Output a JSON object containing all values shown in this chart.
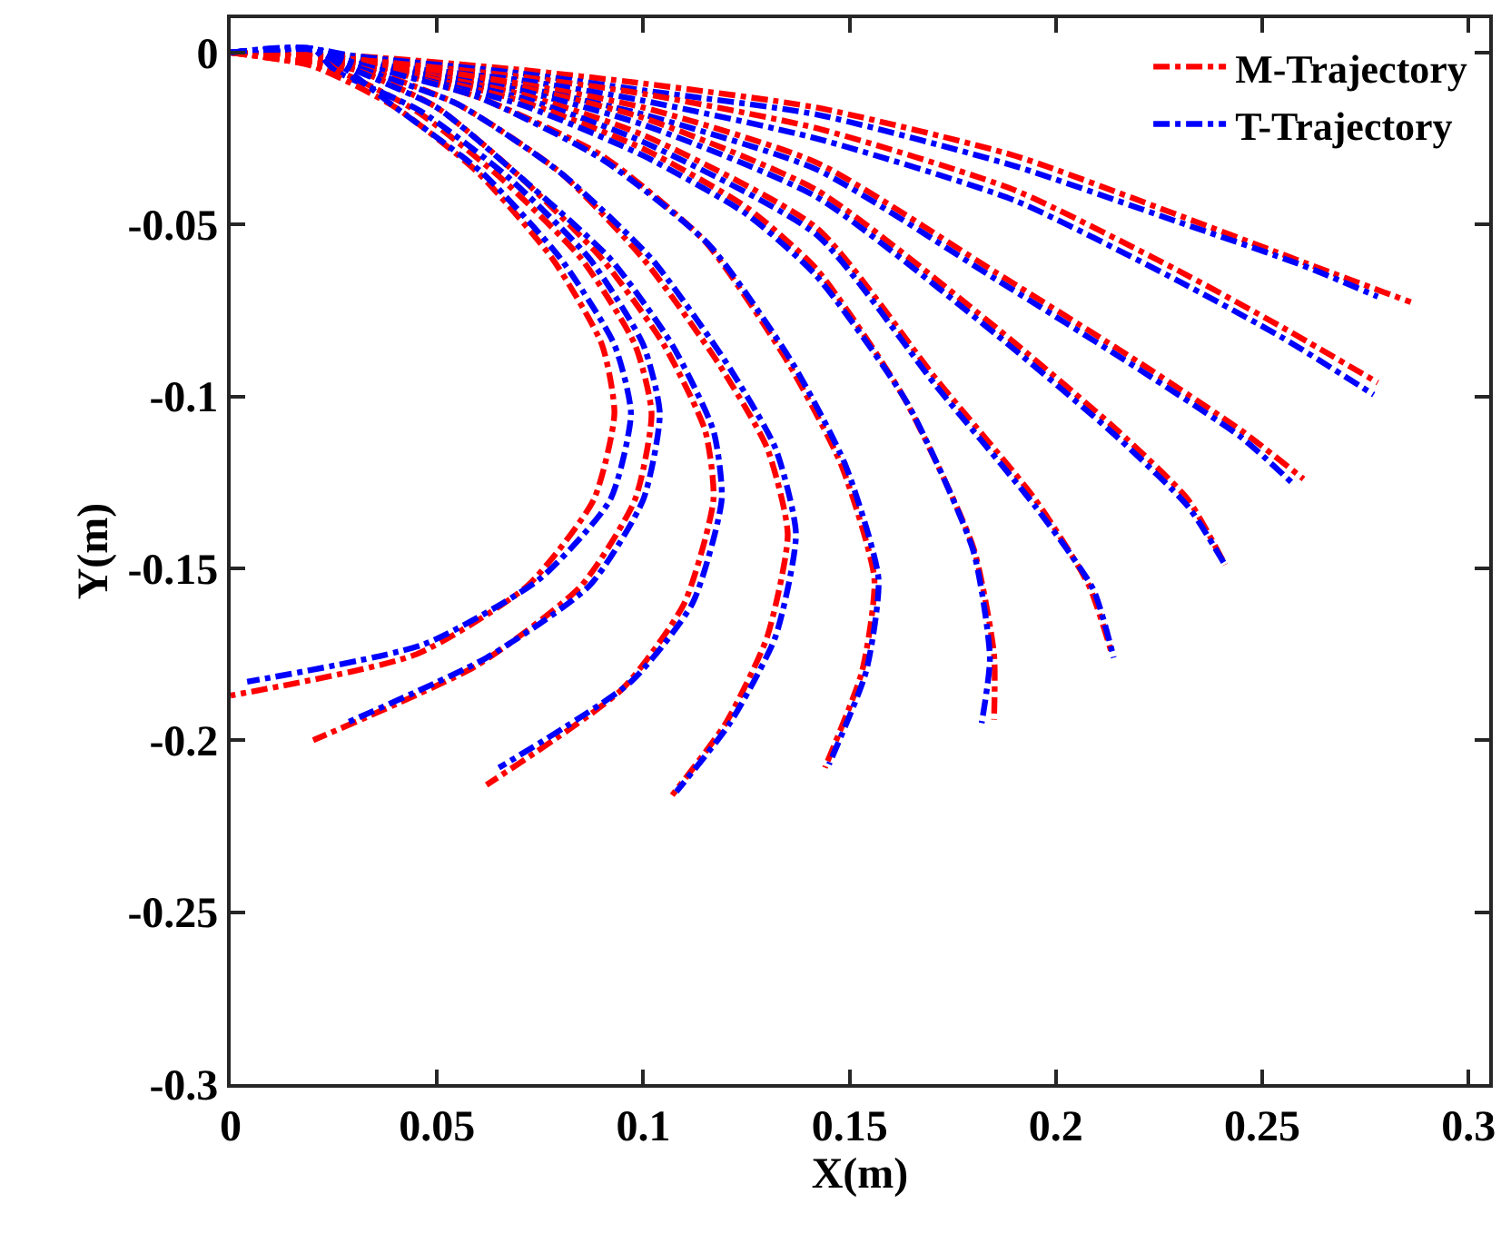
{
  "chart_data": {
    "type": "line",
    "xlabel": "X(m)",
    "ylabel": "Y(m)",
    "xlim": [
      0,
      0.305
    ],
    "xticks": [
      0,
      0.05,
      0.1,
      0.15,
      0.2,
      0.25,
      0.3
    ],
    "ylim": [
      -0.3,
      0.01
    ],
    "yticks": [
      -0.3,
      -0.25,
      -0.2,
      -0.15,
      -0.1,
      -0.05,
      0
    ],
    "legend": "top right",
    "marker": "none",
    "line_style": "dashdot",
    "series": [
      {
        "name": "M-Trajectory",
        "color": "#ff0000",
        "x": [
          0,
          0.03,
          0.07,
          0.1,
          0.142,
          0.19,
          0.229,
          0.26,
          0.286
        ],
        "values": [
          0,
          -0.001,
          -0.005,
          -0.009,
          -0.016,
          -0.03,
          -0.047,
          -0.061,
          -0.0726
        ]
      },
      {
        "name": "T-Trajectory",
        "color": "#0000ff",
        "x": [
          0,
          0.02,
          0.03,
          0.07,
          0.1,
          0.142,
          0.19,
          0.229,
          0.26,
          0.278
        ],
        "values": [
          0,
          0.001,
          -0.001,
          -0.006,
          -0.011,
          -0.018,
          -0.033,
          -0.049,
          -0.062,
          -0.071
        ]
      },
      {
        "color": "#ff0000",
        "x": [
          0,
          0.03,
          0.07,
          0.1,
          0.142,
          0.19,
          0.229,
          0.255,
          0.278
        ],
        "values": [
          0,
          -0.002,
          -0.007,
          -0.012,
          -0.022,
          -0.04,
          -0.063,
          -0.08,
          -0.096
        ]
      },
      {
        "color": "#0000ff",
        "x": [
          0,
          0.02,
          0.03,
          0.07,
          0.1,
          0.142,
          0.19,
          0.229,
          0.255,
          0.277
        ],
        "values": [
          0,
          0.001,
          -0.0025,
          -0.008,
          -0.014,
          -0.025,
          -0.043,
          -0.066,
          -0.083,
          -0.0995
        ]
      },
      {
        "color": "#ff0000",
        "x": [
          0,
          0.03,
          0.07,
          0.1,
          0.142,
          0.1855,
          0.22,
          0.245,
          0.26
        ],
        "values": [
          0,
          -0.002,
          -0.009,
          -0.016,
          -0.032,
          -0.064,
          -0.09,
          -0.11,
          -0.124
        ]
      },
      {
        "color": "#0000ff",
        "x": [
          0,
          0.02,
          0.03,
          0.07,
          0.1,
          0.142,
          0.1855,
          0.22,
          0.245,
          0.258
        ],
        "values": [
          0,
          0.001,
          -0.003,
          -0.01,
          -0.018,
          -0.034,
          -0.066,
          -0.092,
          -0.112,
          -0.126
        ]
      },
      {
        "color": "#ff0000",
        "x": [
          0,
          0.03,
          0.07,
          0.1,
          0.142,
          0.1855,
          0.215,
          0.232,
          0.241
        ],
        "values": [
          0,
          -0.002,
          -0.01,
          -0.019,
          -0.04,
          -0.08,
          -0.11,
          -0.13,
          -0.149
        ]
      },
      {
        "color": "#0000ff",
        "x": [
          0,
          0.02,
          0.03,
          0.07,
          0.1,
          0.142,
          0.1855,
          0.215,
          0.232,
          0.241
        ],
        "values": [
          0,
          0.001,
          -0.003,
          -0.011,
          -0.021,
          -0.042,
          -0.082,
          -0.112,
          -0.132,
          -0.149
        ]
      },
      {
        "color": "#ff0000",
        "x": [
          0,
          0.03,
          0.07,
          0.1,
          0.142,
          0.171,
          0.195,
          0.208,
          0.2136
        ],
        "values": [
          0,
          -0.003,
          -0.012,
          -0.024,
          -0.051,
          -0.095,
          -0.13,
          -0.155,
          -0.175
        ]
      },
      {
        "color": "#0000ff",
        "x": [
          0,
          0.02,
          0.03,
          0.07,
          0.1,
          0.142,
          0.171,
          0.195,
          0.209,
          0.214
        ],
        "values": [
          0,
          0.001,
          -0.003,
          -0.013,
          -0.026,
          -0.053,
          -0.097,
          -0.132,
          -0.156,
          -0.176
        ]
      },
      {
        "color": "#ff0000",
        "x": [
          0,
          0.03,
          0.07,
          0.1,
          0.125,
          0.142,
          0.163,
          0.18,
          0.185,
          0.185
        ],
        "values": [
          0,
          -0.003,
          -0.014,
          -0.028,
          -0.045,
          -0.063,
          -0.1,
          -0.144,
          -0.175,
          -0.194
        ]
      },
      {
        "color": "#0000ff",
        "x": [
          0,
          0.02,
          0.03,
          0.07,
          0.1,
          0.125,
          0.142,
          0.164,
          0.18,
          0.184,
          0.182
        ],
        "values": [
          0,
          0.001,
          -0.003,
          -0.015,
          -0.03,
          -0.047,
          -0.065,
          -0.102,
          -0.145,
          -0.176,
          -0.195
        ]
      },
      {
        "color": "#ff0000",
        "x": [
          0,
          0.03,
          0.06,
          0.09,
          0.115,
          0.135,
          0.148,
          0.156,
          0.153,
          0.144
        ],
        "values": [
          0,
          -0.003,
          -0.013,
          -0.03,
          -0.055,
          -0.09,
          -0.12,
          -0.153,
          -0.18,
          -0.208
        ]
      },
      {
        "color": "#0000ff",
        "x": [
          0,
          0.02,
          0.03,
          0.06,
          0.09,
          0.116,
          0.136,
          0.149,
          0.157,
          0.154,
          0.145
        ],
        "values": [
          0,
          0.001,
          -0.003,
          -0.013,
          -0.031,
          -0.056,
          -0.09,
          -0.12,
          -0.153,
          -0.18,
          -0.207
        ]
      },
      {
        "color": "#ff0000",
        "x": [
          0,
          0.03,
          0.055,
          0.08,
          0.1,
          0.118,
          0.13,
          0.135,
          0.13,
          0.12,
          0.107
        ],
        "values": [
          0,
          -0.004,
          -0.015,
          -0.035,
          -0.06,
          -0.09,
          -0.115,
          -0.14,
          -0.17,
          -0.195,
          -0.216
        ]
      },
      {
        "color": "#0000ff",
        "x": [
          0,
          0.02,
          0.03,
          0.055,
          0.08,
          0.102,
          0.12,
          0.132,
          0.137,
          0.132,
          0.121,
          0.108
        ],
        "values": [
          0,
          0.001,
          -0.004,
          -0.015,
          -0.035,
          -0.06,
          -0.09,
          -0.115,
          -0.14,
          -0.17,
          -0.195,
          -0.215
        ]
      },
      {
        "color": "#ff0000",
        "x": [
          0,
          0.03,
          0.05,
          0.07,
          0.09,
          0.105,
          0.115,
          0.117,
          0.11,
          0.095,
          0.062
        ],
        "values": [
          0,
          -0.005,
          -0.016,
          -0.036,
          -0.06,
          -0.085,
          -0.11,
          -0.13,
          -0.16,
          -0.185,
          -0.213
        ]
      },
      {
        "color": "#0000ff",
        "x": [
          0,
          0.02,
          0.03,
          0.05,
          0.07,
          0.092,
          0.107,
          0.117,
          0.119,
          0.112,
          0.097,
          0.065
        ],
        "values": [
          0,
          0.001,
          -0.005,
          -0.016,
          -0.036,
          -0.06,
          -0.085,
          -0.11,
          -0.13,
          -0.16,
          -0.183,
          -0.208
        ]
      },
      {
        "color": "#ff0000",
        "x": [
          0,
          0.025,
          0.045,
          0.065,
          0.085,
          0.098,
          0.102,
          0.098,
          0.085,
          0.06,
          0.02
        ],
        "values": [
          0,
          -0.005,
          -0.017,
          -0.036,
          -0.06,
          -0.085,
          -0.105,
          -0.13,
          -0.155,
          -0.178,
          -0.2
        ]
      },
      {
        "color": "#0000ff",
        "x": [
          0,
          0.02,
          0.025,
          0.046,
          0.067,
          0.087,
          0.1,
          0.104,
          0.1,
          0.087,
          0.062,
          0.028
        ],
        "values": [
          0,
          0.001,
          -0.005,
          -0.017,
          -0.036,
          -0.06,
          -0.085,
          -0.105,
          -0.13,
          -0.155,
          -0.176,
          -0.195
        ]
      },
      {
        "color": "#ff0000",
        "x": [
          0,
          0.02,
          0.04,
          0.06,
          0.078,
          0.09,
          0.093,
          0.088,
          0.072,
          0.045,
          0
        ],
        "values": [
          0,
          -0.004,
          -0.016,
          -0.035,
          -0.06,
          -0.085,
          -0.105,
          -0.13,
          -0.155,
          -0.175,
          -0.187
        ]
      },
      {
        "color": "#0000ff",
        "x": [
          0,
          0.02,
          0.04,
          0.061,
          0.08,
          0.093,
          0.097,
          0.092,
          0.075,
          0.047,
          0.004
        ],
        "values": [
          0,
          0.001,
          -0.016,
          -0.035,
          -0.06,
          -0.085,
          -0.105,
          -0.13,
          -0.153,
          -0.172,
          -0.183
        ]
      }
    ]
  }
}
